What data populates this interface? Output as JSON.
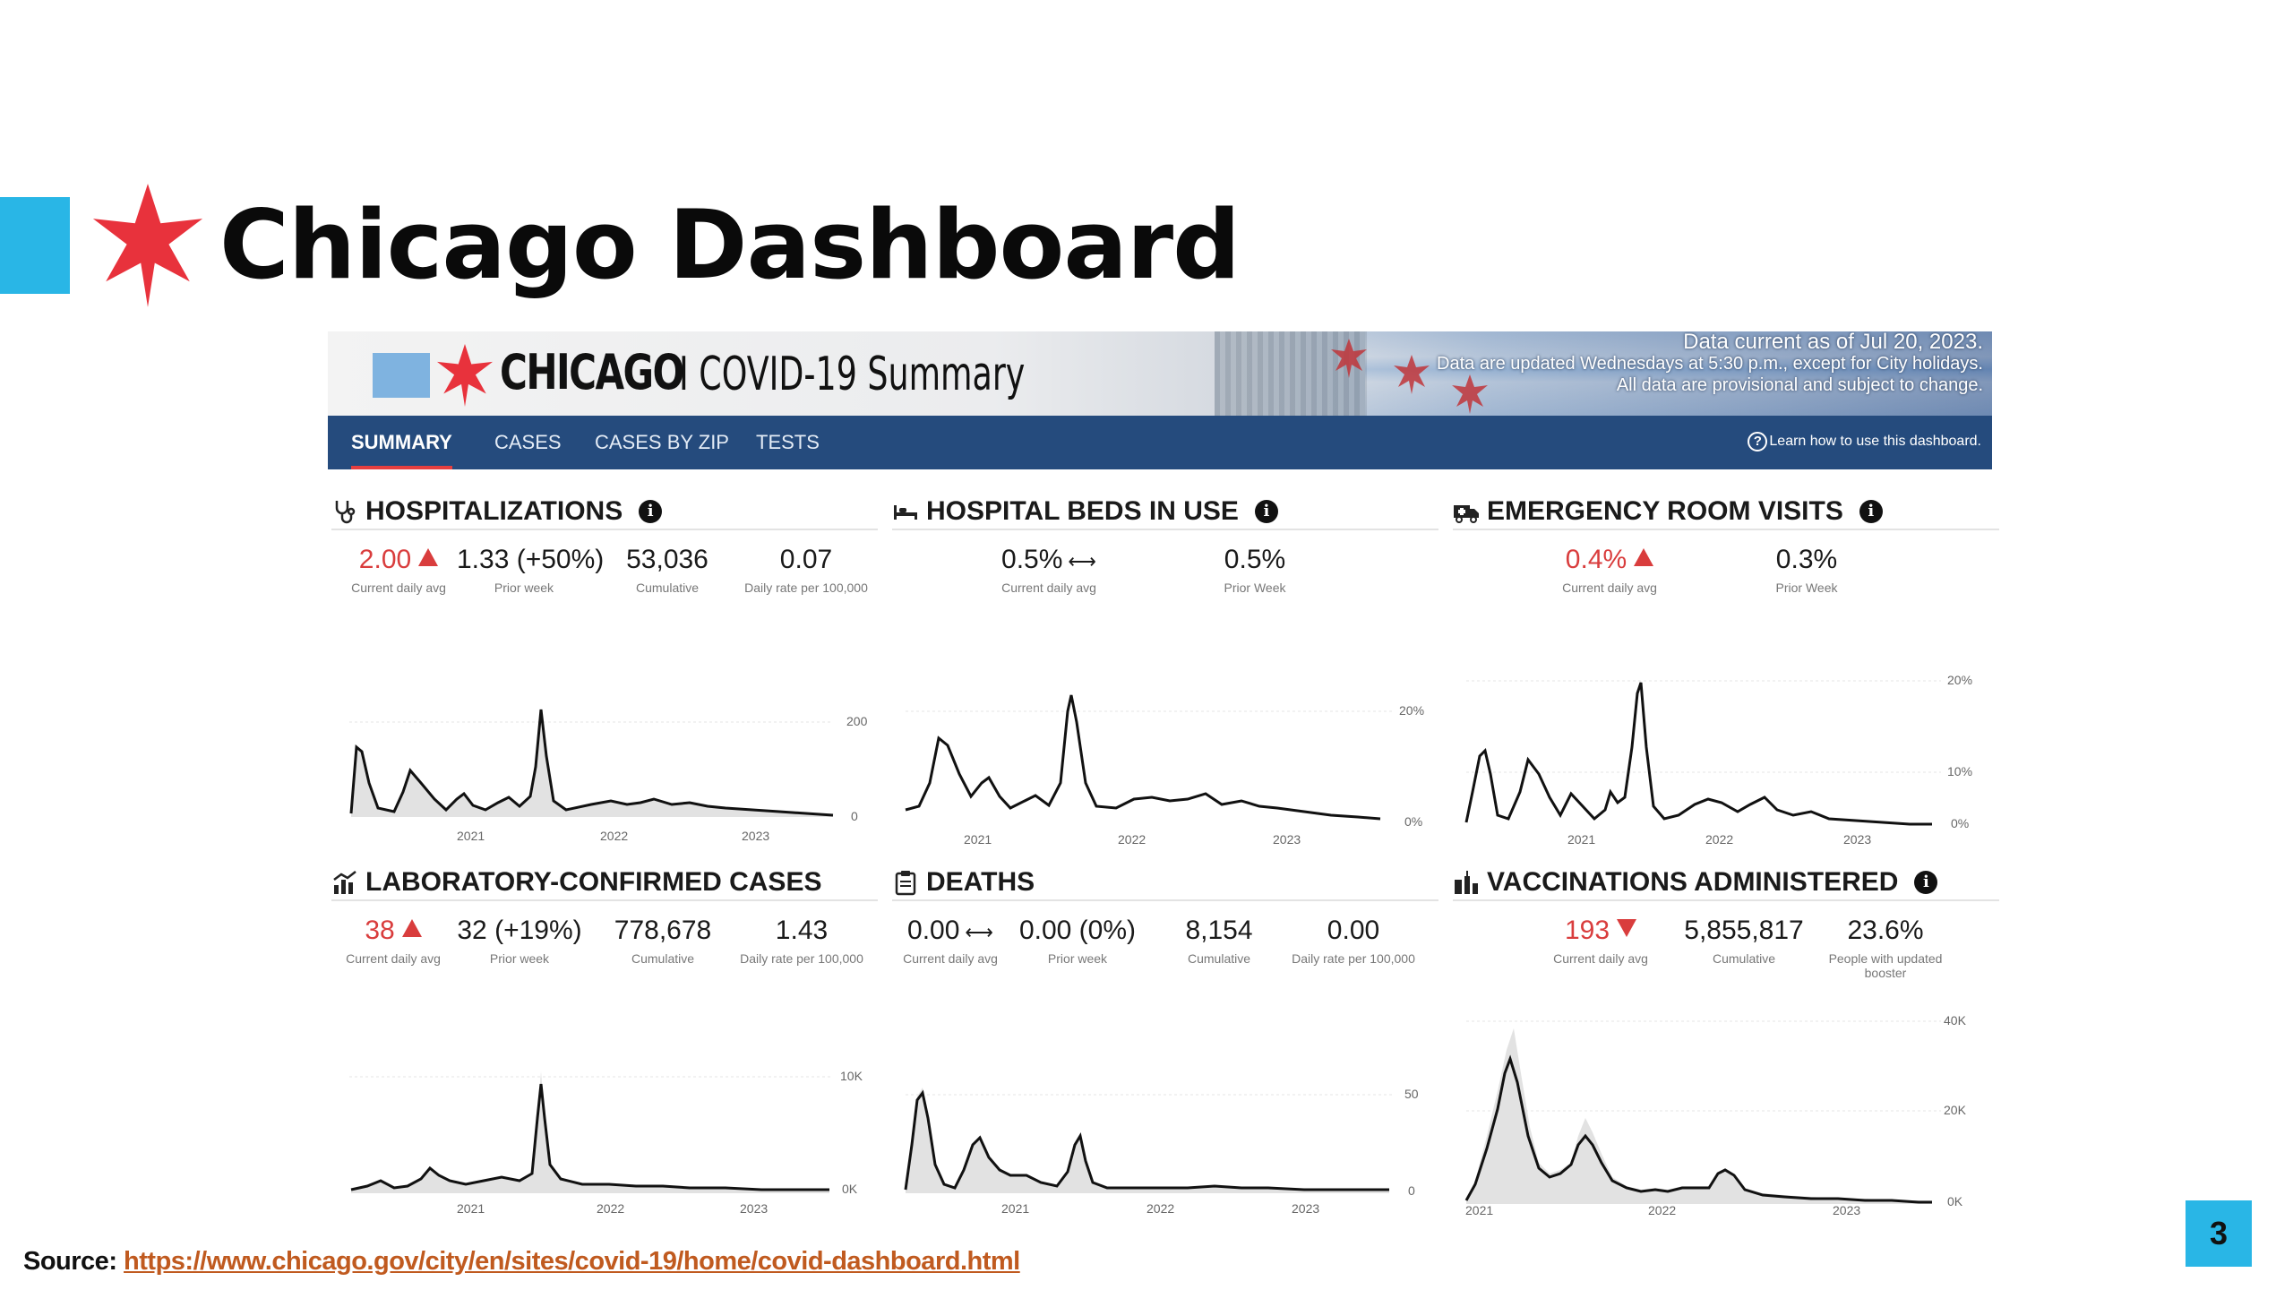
{
  "slide": {
    "title": "Chicago Dashboard",
    "accent_color": "#29b6e6",
    "star_color": "#e8323c",
    "source_label": "Source:",
    "source_url": "https://www.chicago.gov/city/en/sites/covid-19/home/covid-dashboard.html",
    "page_number": "3"
  },
  "dashboard": {
    "banner": {
      "brand": "CHICAGO",
      "subtitle": "I COVID-19 Summary",
      "note_1": "Data current as of Jul 20, 2023.",
      "note_2": "Data are updated Wednesdays at 5:30 p.m., except for City holidays.",
      "note_3": "All data are provisional and subject to change."
    },
    "nav": {
      "tabs": [
        "SUMMARY",
        "CASES",
        "CASES BY ZIP",
        "TESTS"
      ],
      "active_tab": "SUMMARY",
      "help": "Learn how to use this dashboard."
    },
    "panels": {
      "hospitalizations": {
        "title": "HOSPITALIZATIONS",
        "icon": "stethoscope-icon",
        "stats": [
          {
            "value": "2.00",
            "label": "Current daily avg",
            "trend": "up"
          },
          {
            "value": "1.33 (+50%)",
            "label": "Prior week"
          },
          {
            "value": "53,036",
            "label": "Cumulative"
          },
          {
            "value": "0.07",
            "label": "Daily rate per 100,000"
          }
        ],
        "axis": {
          "years": [
            "2021",
            "2022",
            "2023"
          ],
          "y_ticks": [
            "200",
            "0"
          ]
        }
      },
      "beds": {
        "title": "HOSPITAL BEDS IN USE",
        "icon": "bed-icon",
        "stats": [
          {
            "value": "0.5%",
            "label": "Current daily avg",
            "trend": "flat"
          },
          {
            "value": "0.5%",
            "label": "Prior Week"
          }
        ],
        "axis": {
          "years": [
            "2021",
            "2022",
            "2023"
          ],
          "y_ticks": [
            "20%",
            "0%"
          ]
        }
      },
      "er": {
        "title": "EMERGENCY ROOM VISITS",
        "icon": "ambulance-icon",
        "stats": [
          {
            "value": "0.4%",
            "label": "Current daily avg",
            "trend": "up"
          },
          {
            "value": "0.3%",
            "label": "Prior Week"
          }
        ],
        "axis": {
          "years": [
            "2021",
            "2022",
            "2023"
          ],
          "y_ticks": [
            "20%",
            "10%",
            "0%"
          ]
        }
      },
      "cases": {
        "title": "LABORATORY-CONFIRMED CASES",
        "icon": "bar-chart-icon",
        "stats": [
          {
            "value": "38",
            "label": "Current daily avg",
            "trend": "up"
          },
          {
            "value": "32 (+19%)",
            "label": "Prior week"
          },
          {
            "value": "778,678",
            "label": "Cumulative"
          },
          {
            "value": "1.43",
            "label": "Daily rate per 100,000"
          }
        ],
        "axis": {
          "years": [
            "2021",
            "2022",
            "2023"
          ],
          "y_ticks": [
            "10K",
            "0K"
          ]
        }
      },
      "deaths": {
        "title": "DEATHS",
        "icon": "clipboard-icon",
        "stats": [
          {
            "value": "0.00",
            "label": "Current daily avg",
            "trend": "flat"
          },
          {
            "value": "0.00 (0%)",
            "label": "Prior week"
          },
          {
            "value": "8,154",
            "label": "Cumulative"
          },
          {
            "value": "0.00",
            "label": "Daily rate per 100,000"
          }
        ],
        "axis": {
          "years": [
            "2021",
            "2022",
            "2023"
          ],
          "y_ticks": [
            "50",
            "0"
          ]
        }
      },
      "vaccinations": {
        "title": "VACCINATIONS ADMINISTERED",
        "icon": "syringe-icon",
        "stats": [
          {
            "value": "193",
            "label": "Current daily avg",
            "trend": "down"
          },
          {
            "value": "5,855,817",
            "label": "Cumulative"
          },
          {
            "value": "23.6%",
            "label": "People with updated booster"
          }
        ],
        "axis": {
          "years": [
            "2021",
            "2022",
            "2023"
          ],
          "y_ticks": [
            "40K",
            "20K",
            "0K"
          ]
        }
      }
    }
  }
}
